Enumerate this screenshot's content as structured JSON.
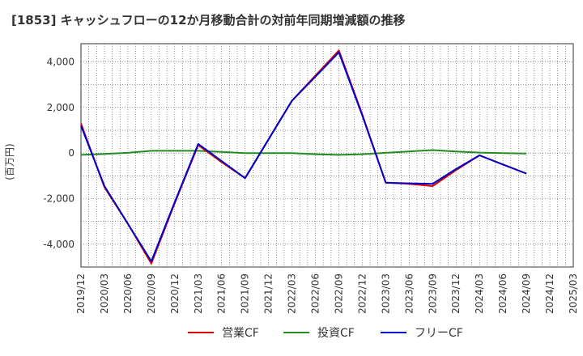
{
  "chart_data": {
    "type": "line",
    "title": "[1853]  キャッシュフローの12か月移動合計の対前年同期増減額の推移",
    "ylabel": "(百万円)",
    "xlabel": "",
    "ylim": [
      -5000,
      4800
    ],
    "yticks": [
      4000,
      2000,
      0,
      -2000,
      -4000
    ],
    "ytick_labels": [
      "4,000",
      "2,000",
      "0",
      "-2,000",
      "-4,000"
    ],
    "x_categories": [
      "2019/12",
      "2020/03",
      "2020/06",
      "2020/09",
      "2020/12",
      "2021/03",
      "2021/06",
      "2021/09",
      "2021/12",
      "2022/03",
      "2022/06",
      "2022/09",
      "2022/12",
      "2023/03",
      "2023/06",
      "2023/09",
      "2023/12",
      "2024/03",
      "2024/06",
      "2024/09",
      "2024/12",
      "2025/03"
    ],
    "grid": true,
    "legend_position": "bottom",
    "series": [
      {
        "name": "営業CF",
        "color": "#dd0000",
        "values": [
          1300,
          -1500,
          -3100,
          -4850,
          -2200,
          350,
          -400,
          -1100,
          600,
          2300,
          3400,
          4500,
          1700,
          -1300,
          -1350,
          -1450,
          -750,
          -100,
          -500,
          -900,
          null,
          null
        ]
      },
      {
        "name": "投資CF",
        "color": "#228b22",
        "values": [
          -80,
          -40,
          10,
          100,
          100,
          100,
          50,
          0,
          0,
          0,
          -50,
          -80,
          -50,
          10,
          70,
          130,
          70,
          20,
          0,
          -20,
          null,
          null
        ]
      },
      {
        "name": "フリーCF",
        "color": "#0000cc",
        "values": [
          1200,
          -1450,
          -3100,
          -4750,
          -2150,
          400,
          -350,
          -1100,
          600,
          2300,
          3350,
          4420,
          1650,
          -1300,
          -1330,
          -1350,
          -700,
          -100,
          -500,
          -900,
          null,
          null
        ]
      }
    ]
  }
}
